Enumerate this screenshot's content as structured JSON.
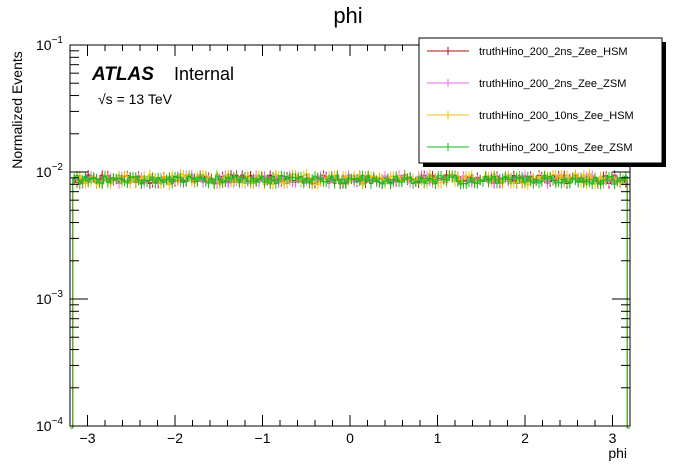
{
  "chart_data": {
    "type": "line",
    "title": "phi",
    "xlabel": "phi",
    "ylabel": "Normalized Events",
    "xlim": [
      -3.2,
      3.2
    ],
    "ylim": [
      0.0001,
      0.1
    ],
    "yscale": "log",
    "x_ticks": [
      -3,
      -2,
      -1,
      0,
      1,
      2,
      3
    ],
    "x_tick_labels": [
      "−3",
      "−2",
      "−1",
      "0",
      "1",
      "2",
      "3"
    ],
    "y_tick_labels": [
      "10^-4",
      "10^-3",
      "10^-2",
      "10^-1"
    ],
    "legend_position": "top-right",
    "annotation": {
      "experiment": "ATLAS",
      "status": "Internal",
      "energy": "√s = 13 TeV"
    },
    "series": [
      {
        "name": "truthHino_200_2ns_Zee_HSM",
        "color": "#aa1111",
        "baseline": 0.0088,
        "relative_spread": 0.08
      },
      {
        "name": "truthHino_200_2ns_Zee_ZSM",
        "color": "#ee66ee",
        "baseline": 0.0088,
        "relative_spread": 0.08
      },
      {
        "name": "truthHino_200_10ns_Zee_HSM",
        "color": "#f0c000",
        "baseline": 0.0088,
        "relative_spread": 0.1
      },
      {
        "name": "truthHino_200_10ns_Zee_ZSM",
        "color": "#11bb11",
        "baseline": 0.0087,
        "relative_spread": 0.08
      }
    ],
    "n_bins": 200
  }
}
